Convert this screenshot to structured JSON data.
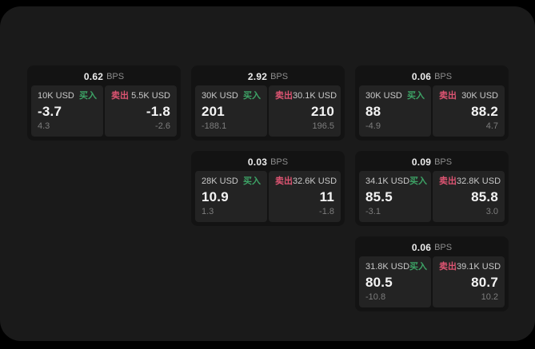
{
  "labels": {
    "bps_unit": "BPS",
    "buy": "买入",
    "sell": "卖出"
  },
  "colors": {
    "page_bg": "#1a1a1a",
    "card_bg": "#131313",
    "panel_bg": "#232323",
    "buy_green": "#3da366",
    "sell_red": "#dd5472"
  },
  "cards": [
    {
      "bps": "0.62",
      "buy": {
        "amount": "10K USD",
        "value": "-3.7",
        "sub": "4.3"
      },
      "sell": {
        "amount": "5.5K USD",
        "value": "-1.8",
        "sub": "-2.6"
      }
    },
    {
      "bps": "2.92",
      "buy": {
        "amount": "30K USD",
        "value": "201",
        "sub": "-188.1"
      },
      "sell": {
        "amount": "30.1K USD",
        "value": "210",
        "sub": "196.5"
      }
    },
    {
      "bps": "0.06",
      "buy": {
        "amount": "30K USD",
        "value": "88",
        "sub": "-4.9"
      },
      "sell": {
        "amount": "30K USD",
        "value": "88.2",
        "sub": "4.7"
      }
    },
    {
      "bps": "0.03",
      "buy": {
        "amount": "28K USD",
        "value": "10.9",
        "sub": "1.3"
      },
      "sell": {
        "amount": "32.6K USD",
        "value": "11",
        "sub": "-1.8"
      }
    },
    {
      "bps": "0.09",
      "buy": {
        "amount": "34.1K USD",
        "value": "85.5",
        "sub": "-3.1"
      },
      "sell": {
        "amount": "32.8K USD",
        "value": "85.8",
        "sub": "3.0"
      }
    },
    {
      "bps": "0.06",
      "buy": {
        "amount": "31.8K USD",
        "value": "80.5",
        "sub": "-10.8"
      },
      "sell": {
        "amount": "39.1K USD",
        "value": "80.7",
        "sub": "10.2"
      }
    }
  ]
}
